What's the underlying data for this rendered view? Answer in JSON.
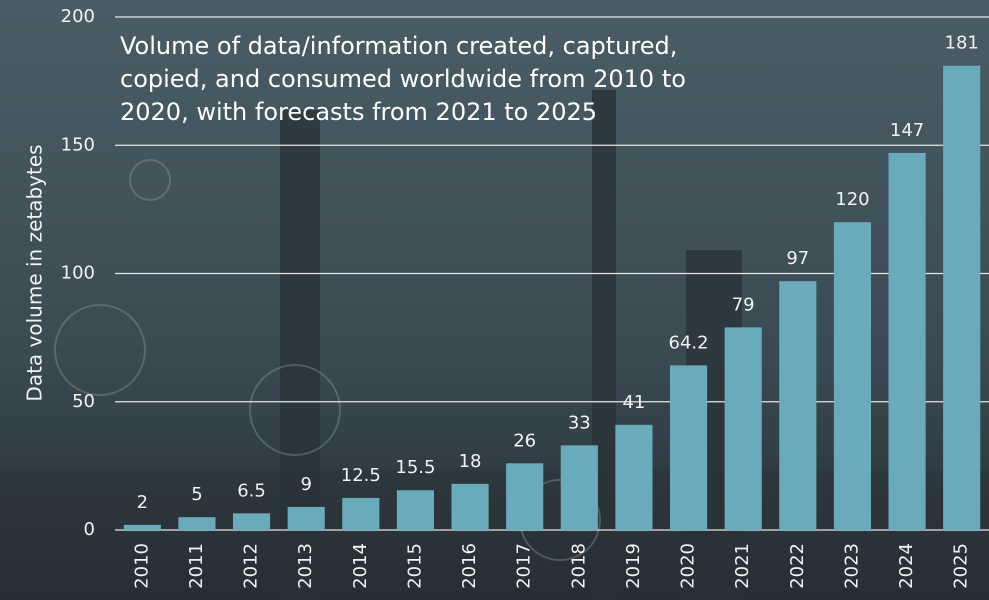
{
  "chart_data": {
    "type": "bar",
    "title": "Volume of data/information created, captured, copied, and consumed worldwide from 2010 to 2020, with forecasts from 2021 to 2025",
    "y_label": "Data volume in zetabytes",
    "categories": [
      "2010",
      "2011",
      "2012",
      "2013",
      "2014",
      "2015",
      "2016",
      "2017",
      "2018",
      "2019",
      "2020",
      "2021",
      "2022",
      "2023",
      "2024",
      "2025"
    ],
    "values": [
      2,
      5,
      6.5,
      9,
      12.5,
      15.5,
      18,
      26,
      33,
      41,
      64.2,
      79,
      97,
      120,
      147,
      181
    ],
    "color": "#6aabbb",
    "ylim": [
      0,
      200
    ],
    "yticks": [
      0,
      50,
      100,
      150,
      200
    ],
    "grid": true
  }
}
